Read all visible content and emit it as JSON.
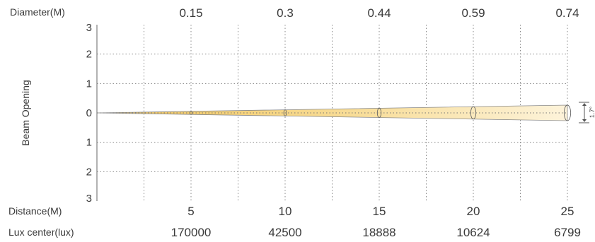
{
  "chart_data": {
    "type": "area",
    "title": "",
    "row_labels": {
      "diameter": "Diameter(M)",
      "distance": "Distance(M)",
      "lux": "Lux center(lux)"
    },
    "ylabel": "Beam Opening",
    "y_ticks": [
      "3",
      "2",
      "1",
      "0",
      "1",
      "2",
      "3"
    ],
    "ylim": [
      -3,
      3
    ],
    "xlim": [
      0,
      25
    ],
    "distance_m": [
      5,
      10,
      15,
      20,
      25
    ],
    "distance_labels": [
      "5",
      "10",
      "15",
      "20",
      "25"
    ],
    "diameter_labels": [
      "0.15",
      "0.3",
      "0.44",
      "0.59",
      "0.74"
    ],
    "lux_labels": [
      "170000",
      "42500",
      "18888",
      "10624",
      "6799"
    ],
    "beam_angle_label": "1.7°",
    "grid": true,
    "colors": {
      "beam_fill": "#f6dc95",
      "beam_edge": "#8a8a8a",
      "grid": "#888888",
      "text": "#3a3a3a"
    }
  }
}
